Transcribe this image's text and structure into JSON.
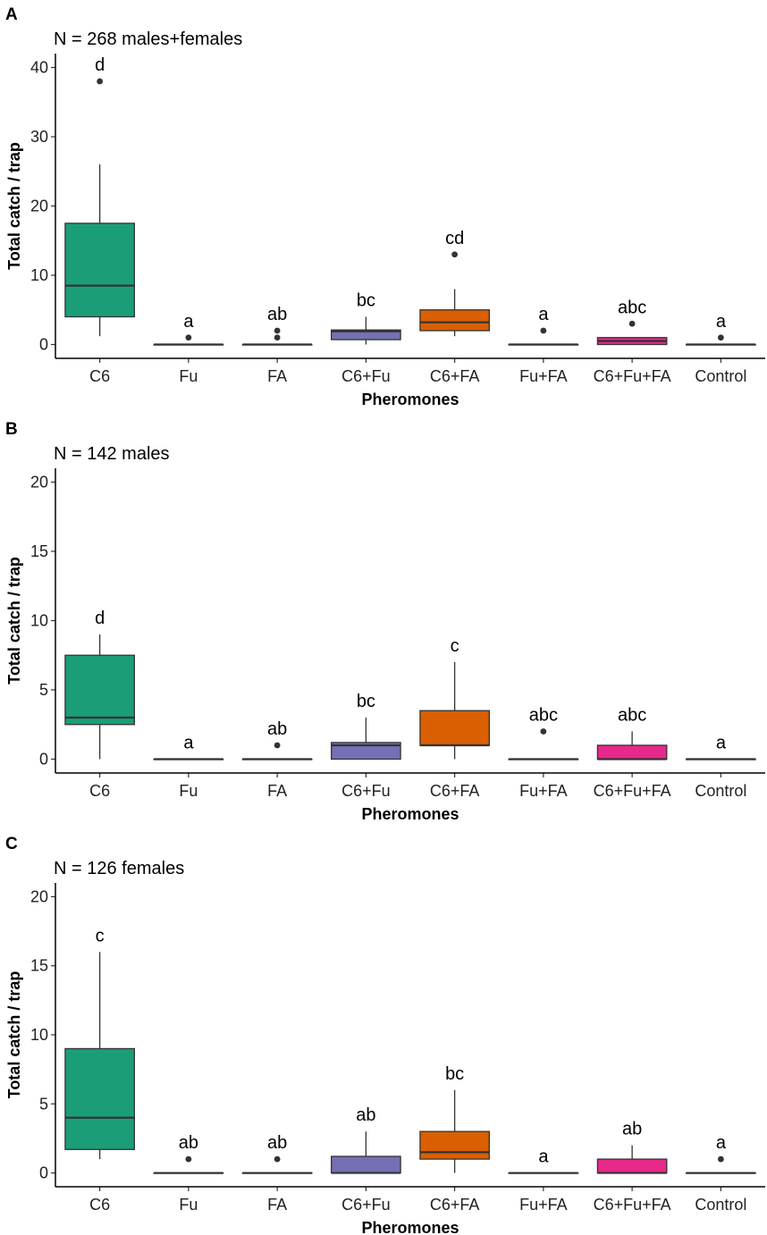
{
  "xlabel": "Pheromones",
  "ylabel": "Total catch / trap",
  "colors": {
    "C6": "#1b9e77",
    "Fu": "#1b9e77",
    "FA": "#1b9e77",
    "C6+Fu": "#7570b3",
    "C6+FA": "#d95f02",
    "Fu+FA": "#1b9e77",
    "C6+Fu+FA": "#e7298a",
    "Control": "#1b9e77"
  },
  "chart_data": [
    {
      "type": "box",
      "panel": "A",
      "title": "N = 268 males+females",
      "xlabel": "Pheromones",
      "ylabel": "Total catch / trap",
      "ylim": [
        -2,
        42
      ],
      "yticks": [
        0,
        10,
        20,
        30,
        40
      ],
      "categories": [
        "C6",
        "Fu",
        "FA",
        "C6+Fu",
        "C6+FA",
        "Fu+FA",
        "C6+Fu+FA",
        "Control"
      ],
      "boxes": [
        {
          "min": 1.2,
          "q1": 4,
          "median": 8.5,
          "q3": 17.5,
          "max": 26,
          "outliers": [
            38
          ],
          "label": "d"
        },
        {
          "min": 0,
          "q1": 0,
          "median": 0,
          "q3": 0,
          "max": 0,
          "outliers": [
            1
          ],
          "label": "a"
        },
        {
          "min": 0,
          "q1": 0,
          "median": 0,
          "q3": 0,
          "max": 0,
          "outliers": [
            1,
            2
          ],
          "label": "ab"
        },
        {
          "min": 0,
          "q1": 0.7,
          "median": 1.9,
          "q3": 2.1,
          "max": 4,
          "outliers": [],
          "label": "bc"
        },
        {
          "min": 1.2,
          "q1": 2,
          "median": 3.2,
          "q3": 5,
          "max": 8,
          "outliers": [
            13
          ],
          "label": "cd"
        },
        {
          "min": 0,
          "q1": 0,
          "median": 0,
          "q3": 0,
          "max": 0,
          "outliers": [
            2
          ],
          "label": "a"
        },
        {
          "min": 0,
          "q1": 0,
          "median": 0.5,
          "q3": 1,
          "max": 1,
          "outliers": [
            3
          ],
          "label": "abc"
        },
        {
          "min": 0,
          "q1": 0,
          "median": 0,
          "q3": 0,
          "max": 0,
          "outliers": [
            1
          ],
          "label": "a"
        }
      ]
    },
    {
      "type": "box",
      "panel": "B",
      "title": "N = 142 males",
      "xlabel": "Pheromones",
      "ylabel": "Total catch / trap",
      "ylim": [
        -1,
        21
      ],
      "yticks": [
        0,
        5,
        10,
        15,
        20
      ],
      "categories": [
        "C6",
        "Fu",
        "FA",
        "C6+Fu",
        "C6+FA",
        "Fu+FA",
        "C6+Fu+FA",
        "Control"
      ],
      "boxes": [
        {
          "min": 0,
          "q1": 2.5,
          "median": 3,
          "q3": 7.5,
          "max": 9,
          "outliers": [],
          "label": "d"
        },
        {
          "min": 0,
          "q1": 0,
          "median": 0,
          "q3": 0,
          "max": 0,
          "outliers": [],
          "label": "a"
        },
        {
          "min": 0,
          "q1": 0,
          "median": 0,
          "q3": 0,
          "max": 0,
          "outliers": [
            1
          ],
          "label": "ab"
        },
        {
          "min": 0,
          "q1": 0,
          "median": 1,
          "q3": 1.2,
          "max": 3,
          "outliers": [],
          "label": "bc"
        },
        {
          "min": 0,
          "q1": 1,
          "median": 1,
          "q3": 3.5,
          "max": 7,
          "outliers": [],
          "label": "c"
        },
        {
          "min": 0,
          "q1": 0,
          "median": 0,
          "q3": 0,
          "max": 0,
          "outliers": [
            2
          ],
          "label": "abc"
        },
        {
          "min": 0,
          "q1": 0,
          "median": 0,
          "q3": 1,
          "max": 2,
          "outliers": [],
          "label": "abc"
        },
        {
          "min": 0,
          "q1": 0,
          "median": 0,
          "q3": 0,
          "max": 0,
          "outliers": [],
          "label": "a"
        }
      ]
    },
    {
      "type": "box",
      "panel": "C",
      "title": "N = 126 females",
      "xlabel": "Pheromones",
      "ylabel": "Total catch / trap",
      "ylim": [
        -1,
        21
      ],
      "yticks": [
        0,
        5,
        10,
        15,
        20
      ],
      "categories": [
        "C6",
        "Fu",
        "FA",
        "C6+Fu",
        "C6+FA",
        "Fu+FA",
        "C6+Fu+FA",
        "Control"
      ],
      "boxes": [
        {
          "min": 1,
          "q1": 1.7,
          "median": 4,
          "q3": 9,
          "max": 16,
          "outliers": [],
          "label": "c"
        },
        {
          "min": 0,
          "q1": 0,
          "median": 0,
          "q3": 0,
          "max": 0,
          "outliers": [
            1
          ],
          "label": "ab"
        },
        {
          "min": 0,
          "q1": 0,
          "median": 0,
          "q3": 0,
          "max": 0,
          "outliers": [
            1
          ],
          "label": "ab"
        },
        {
          "min": 0,
          "q1": 0,
          "median": 0,
          "q3": 1.2,
          "max": 3,
          "outliers": [],
          "label": "ab"
        },
        {
          "min": 0,
          "q1": 1,
          "median": 1.5,
          "q3": 3,
          "max": 6,
          "outliers": [],
          "label": "bc"
        },
        {
          "min": 0,
          "q1": 0,
          "median": 0,
          "q3": 0,
          "max": 0,
          "outliers": [],
          "label": "a"
        },
        {
          "min": 0,
          "q1": 0,
          "median": 0,
          "q3": 1,
          "max": 2,
          "outliers": [],
          "label": "ab"
        },
        {
          "min": 0,
          "q1": 0,
          "median": 0,
          "q3": 0,
          "max": 0,
          "outliers": [
            1
          ],
          "label": "a"
        }
      ]
    }
  ]
}
